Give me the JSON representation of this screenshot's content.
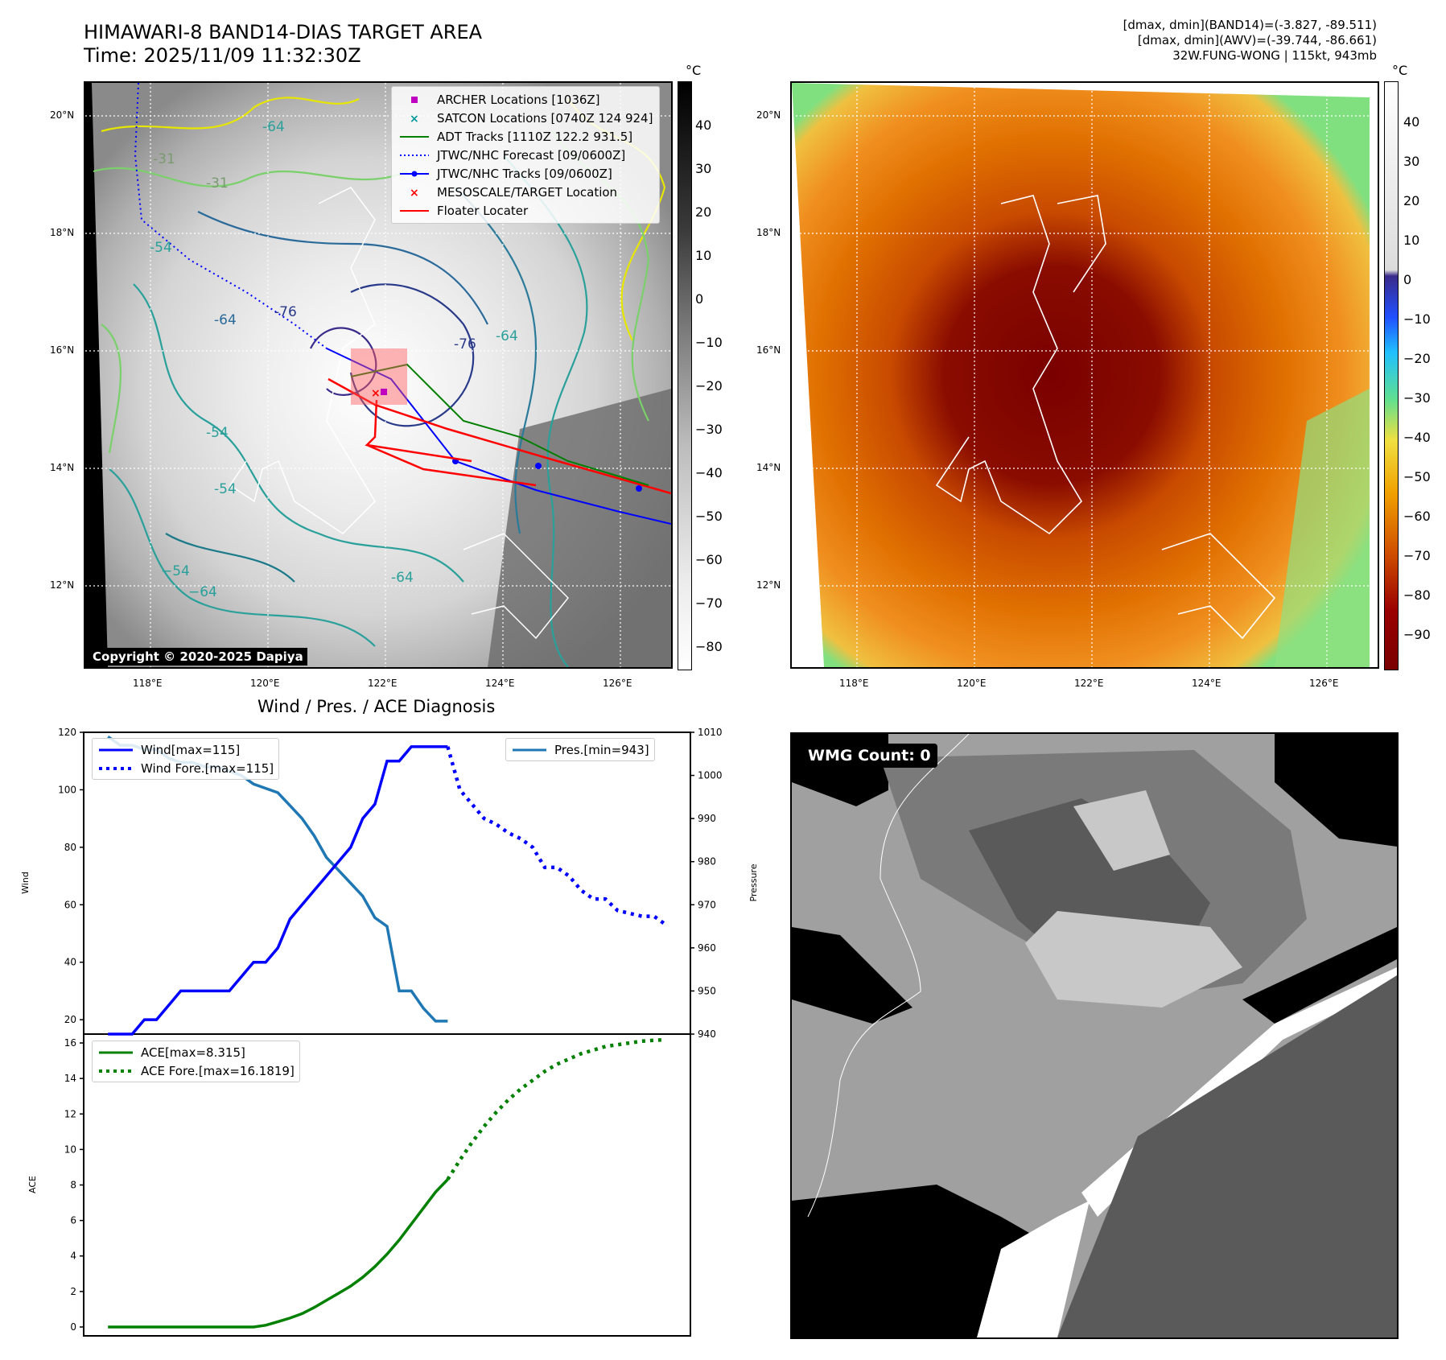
{
  "header": {
    "title_line1": "HIMAWARI-8 BAND14-DIAS TARGET AREA",
    "title_line2": "Time: 2025/11/09 11:32:30Z",
    "info_line1": "[dmax, dmin](BAND14)=(-3.827, -89.511)",
    "info_line2": "[dmax, dmin](AWV)=(-39.744, -86.661)",
    "info_line3": "32W.FUNG-WONG | 115kt, 943mb"
  },
  "map": {
    "lat_labels": [
      "20°N",
      "18°N",
      "16°N",
      "14°N",
      "12°N"
    ],
    "lon_labels": [
      "118°E",
      "120°E",
      "122°E",
      "124°E",
      "126°E"
    ],
    "copyright": "Copyright © 2020-2025 Dapiya",
    "contour_labels": [
      "-31",
      "-31",
      "-54",
      "-64",
      "-64",
      "-76",
      "-76",
      "-64",
      "-54",
      "-54",
      "−54",
      "−64",
      "-64"
    ],
    "legend": [
      {
        "label": "ARCHER Locations [1036Z]",
        "color": "#c000c0",
        "icon": "square-marker"
      },
      {
        "label": "SATCON Locations [0740Z 124 924]",
        "color": "#009999",
        "icon": "x-marker"
      },
      {
        "label": "ADT Tracks [1110Z 122.2 931.5]",
        "color": "#007f00",
        "icon": "solid-line"
      },
      {
        "label": "JTWC/NHC Forecast [09/0600Z]",
        "color": "#0000ff",
        "icon": "dotted-line"
      },
      {
        "label": "JTWC/NHC Tracks [09/0600Z]",
        "color": "#0000ff",
        "icon": "line-with-dot"
      },
      {
        "label": "MESOSCALE/TARGET Location",
        "color": "#ff0000",
        "icon": "x-marker"
      },
      {
        "label": "Floater Locater",
        "color": "#ff0000",
        "icon": "solid-line"
      }
    ],
    "gray_colorbar": {
      "unit": "°C",
      "ticks": [
        "40",
        "30",
        "20",
        "10",
        "0",
        "−10",
        "−20",
        "−30",
        "−40",
        "−50",
        "−60",
        "−70",
        "−80"
      ]
    },
    "color_colorbar": {
      "unit": "°C",
      "ticks": [
        "40",
        "30",
        "20",
        "10",
        "0",
        "−10",
        "−20",
        "−30",
        "−40",
        "−50",
        "−60",
        "−70",
        "−80",
        "−90"
      ]
    }
  },
  "diagnosis": {
    "title": "Wind / Pres. / ACE Diagnosis",
    "wind_ylabel": "Wind",
    "pres_ylabel": "Pressure",
    "ace_ylabel": "ACE",
    "wind_ticks": [
      "120",
      "100",
      "80",
      "60",
      "40",
      "20"
    ],
    "pres_ticks": [
      "1010",
      "1000",
      "990",
      "980",
      "970",
      "960",
      "950",
      "940"
    ],
    "ace_ticks": [
      "16",
      "14",
      "12",
      "10",
      "8",
      "6",
      "4",
      "2",
      "0"
    ],
    "legend_wind": "Wind[max=115]",
    "legend_wind_fore": "Wind Fore.[max=115]",
    "legend_pres": "Pres.[min=943]",
    "legend_ace": "ACE[max=8.315]",
    "legend_ace_fore": "ACE Fore.[max=16.1819]"
  },
  "wmg": {
    "label": "WMG Count: 0"
  },
  "chart_data": [
    {
      "type": "line",
      "title": "Wind / Pres. / ACE Diagnosis",
      "ylabel": "Wind",
      "ylim": [
        15,
        120
      ],
      "series": [
        {
          "name": "Wind[max=115]",
          "color": "#0000ff",
          "style": "solid",
          "x": [
            0,
            1,
            2,
            3,
            4,
            5,
            6,
            7,
            8,
            9,
            10,
            11,
            12,
            13,
            14,
            15,
            16,
            17,
            18,
            19,
            20,
            21,
            22,
            23,
            24,
            25,
            26,
            27,
            28
          ],
          "values": [
            15,
            15,
            15,
            20,
            20,
            25,
            30,
            30,
            30,
            30,
            30,
            35,
            40,
            40,
            45,
            55,
            60,
            65,
            70,
            75,
            80,
            90,
            95,
            110,
            110,
            115,
            115,
            115,
            115
          ]
        },
        {
          "name": "Wind Fore.[max=115]",
          "color": "#0000ff",
          "style": "dotted",
          "x": [
            28,
            29,
            30,
            31,
            32,
            33,
            34,
            35,
            36,
            37,
            38,
            39,
            40,
            41,
            42,
            43,
            44,
            45,
            46
          ],
          "values": [
            115,
            100,
            95,
            90,
            88,
            85,
            83,
            80,
            73,
            73,
            70,
            65,
            62,
            62,
            58,
            57,
            56,
            56,
            53
          ]
        }
      ]
    },
    {
      "type": "line",
      "ylabel": "Pressure",
      "ylim": [
        940,
        1010
      ],
      "series": [
        {
          "name": "Pres.[min=943]",
          "color": "#1f77b4",
          "style": "solid",
          "x": [
            0,
            1,
            2,
            3,
            4,
            5,
            6,
            7,
            8,
            9,
            10,
            11,
            12,
            13,
            14,
            15,
            16,
            17,
            18,
            19,
            20,
            21,
            22,
            23,
            24,
            25,
            26,
            27,
            28
          ],
          "values": [
            1009,
            1007,
            1007,
            1006,
            1006,
            1004,
            1003,
            1003,
            1002,
            1002,
            1001,
            1000,
            998,
            997,
            996,
            993,
            990,
            986,
            981,
            978,
            975,
            972,
            967,
            965,
            950,
            950,
            946,
            943,
            943
          ]
        }
      ]
    },
    {
      "type": "line",
      "ylabel": "ACE",
      "ylim": [
        -0.5,
        16.5
      ],
      "series": [
        {
          "name": "ACE[max=8.315]",
          "color": "#008000",
          "style": "solid",
          "x": [
            0,
            2,
            4,
            6,
            8,
            10,
            12,
            13,
            14,
            15,
            16,
            17,
            18,
            19,
            20,
            21,
            22,
            23,
            24,
            25,
            26,
            27,
            28
          ],
          "values": [
            0,
            0,
            0,
            0,
            0,
            0,
            0,
            0.1,
            0.3,
            0.5,
            0.75,
            1.1,
            1.5,
            1.9,
            2.3,
            2.8,
            3.4,
            4.1,
            4.9,
            5.8,
            6.7,
            7.6,
            8.315
          ]
        },
        {
          "name": "ACE Fore.[max=16.1819]",
          "color": "#008000",
          "style": "dotted",
          "x": [
            28,
            29,
            30,
            31,
            32,
            33,
            34,
            35,
            36,
            37,
            38,
            39,
            40,
            41,
            42,
            43,
            44,
            45,
            46
          ],
          "values": [
            8.315,
            9.4,
            10.4,
            11.3,
            12.1,
            12.8,
            13.4,
            13.9,
            14.4,
            14.8,
            15.1,
            15.4,
            15.6,
            15.8,
            15.9,
            16.0,
            16.1,
            16.15,
            16.1819
          ]
        }
      ]
    }
  ]
}
